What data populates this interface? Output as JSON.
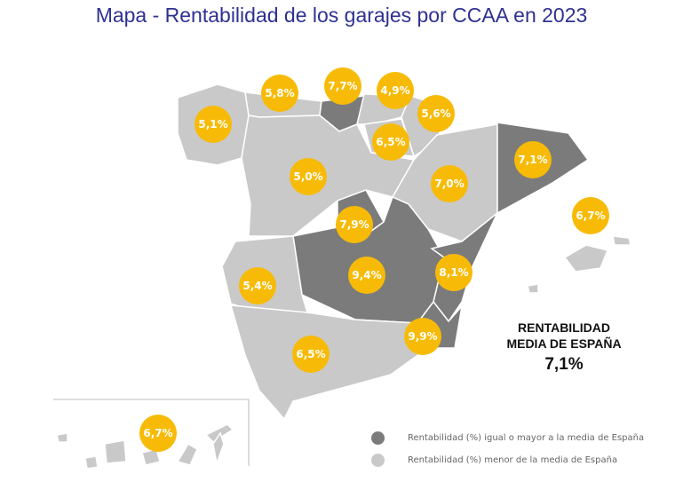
{
  "title": "Mapa - Rentabilidad de los garajes por CCAA en 2023",
  "colors": {
    "above": "#7b7b7b",
    "below": "#c9c9c9",
    "bubble": "#f7bb07",
    "title": "#2e3192"
  },
  "regions": [
    {
      "key": "galicia",
      "value": "5,1%",
      "category": "below"
    },
    {
      "key": "asturias",
      "value": "5,8%",
      "category": "below"
    },
    {
      "key": "cantabria",
      "value": "7,7%",
      "category": "above"
    },
    {
      "key": "pais-vasco",
      "value": "4,9%",
      "category": "below"
    },
    {
      "key": "navarra",
      "value": "5,6%",
      "category": "below"
    },
    {
      "key": "la-rioja",
      "value": "6,5%",
      "category": "below"
    },
    {
      "key": "castilla-y-leon",
      "value": "5,0%",
      "category": "below"
    },
    {
      "key": "aragon",
      "value": "7,0%",
      "category": "below"
    },
    {
      "key": "cataluna",
      "value": "7,1%",
      "category": "above"
    },
    {
      "key": "baleares",
      "value": "6,7%",
      "category": "below"
    },
    {
      "key": "madrid",
      "value": "7,9%",
      "category": "above"
    },
    {
      "key": "castilla-la-mancha",
      "value": "9,4%",
      "category": "above"
    },
    {
      "key": "valencia",
      "value": "8,1%",
      "category": "above"
    },
    {
      "key": "extremadura",
      "value": "5,4%",
      "category": "below"
    },
    {
      "key": "andalucia",
      "value": "6,5%",
      "category": "below"
    },
    {
      "key": "murcia",
      "value": "9,9%",
      "category": "above"
    },
    {
      "key": "canarias",
      "value": "6,7%",
      "category": "below"
    }
  ],
  "average": {
    "label_line1": "RENTABILIDAD",
    "label_line2": "MEDIA DE ESPAÑA",
    "value": "7,1%"
  },
  "legend": [
    {
      "label": "Rentabilidad (%) igual o mayor a la media de España",
      "category": "above"
    },
    {
      "label": "Rentabilidad (%) menor de la media de España",
      "category": "below"
    }
  ]
}
